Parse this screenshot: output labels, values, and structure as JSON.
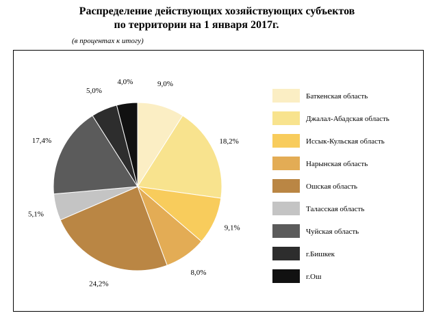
{
  "title_line1": "Распределение действующих хозяйствующих субъектов",
  "title_line2": "по территории на 1 января 2017г.",
  "subtitle": "(в процентах к итогу)",
  "chart_data": {
    "type": "pie",
    "title": "Распределение действующих хозяйствующих субъектов по территории на 1 января 2017г.",
    "subtitle": "(в процентах к итогу)",
    "legend_position": "right",
    "slices": [
      {
        "name": "Баткенская область",
        "value": 9.0,
        "label": "9,0%",
        "color": "#fbeec4"
      },
      {
        "name": "Джалал-Абадская область",
        "value": 18.2,
        "label": "18,2%",
        "color": "#f8e38e"
      },
      {
        "name": "Иссык-Кульская область",
        "value": 9.1,
        "label": "9,1%",
        "color": "#f8cc5c"
      },
      {
        "name": "Нарынская область",
        "value": 8.0,
        "label": "8,0%",
        "color": "#e3ac55"
      },
      {
        "name": "Ошская область",
        "value": 24.2,
        "label": "24,2%",
        "color": "#ba8644"
      },
      {
        "name": "Таласская область",
        "value": 5.1,
        "label": "5,1%",
        "color": "#c4c4c4"
      },
      {
        "name": "Чуйская область",
        "value": 17.4,
        "label": "17,4%",
        "color": "#5b5b5b"
      },
      {
        "name": "г.Бишкек",
        "value": 5.0,
        "label": "5,0%",
        "color": "#2d2d2d"
      },
      {
        "name": "г.Ош",
        "value": 4.0,
        "label": "4,0%",
        "color": "#111111"
      }
    ]
  }
}
